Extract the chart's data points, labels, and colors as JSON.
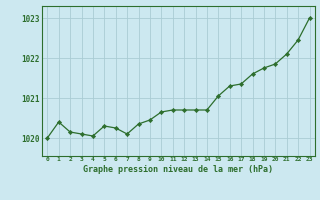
{
  "x": [
    0,
    1,
    2,
    3,
    4,
    5,
    6,
    7,
    8,
    9,
    10,
    11,
    12,
    13,
    14,
    15,
    16,
    17,
    18,
    19,
    20,
    21,
    22,
    23
  ],
  "y": [
    1020.0,
    1020.4,
    1020.15,
    1020.1,
    1020.05,
    1020.3,
    1020.25,
    1020.1,
    1020.35,
    1020.45,
    1020.65,
    1020.7,
    1020.7,
    1020.7,
    1020.7,
    1021.05,
    1021.3,
    1021.35,
    1021.6,
    1021.75,
    1021.85,
    1022.1,
    1022.45,
    1023.0
  ],
  "line_color": "#2d6e2d",
  "marker_color": "#2d6e2d",
  "bg_color": "#cce8f0",
  "grid_color": "#aaccd4",
  "axis_label_color": "#2d6e2d",
  "tick_color": "#2d6e2d",
  "ylabel_ticks": [
    1020,
    1021,
    1022,
    1023
  ],
  "xlabel": "Graphe pression niveau de la mer (hPa)",
  "ylim": [
    1019.55,
    1023.3
  ],
  "xlim": [
    -0.5,
    23.5
  ]
}
